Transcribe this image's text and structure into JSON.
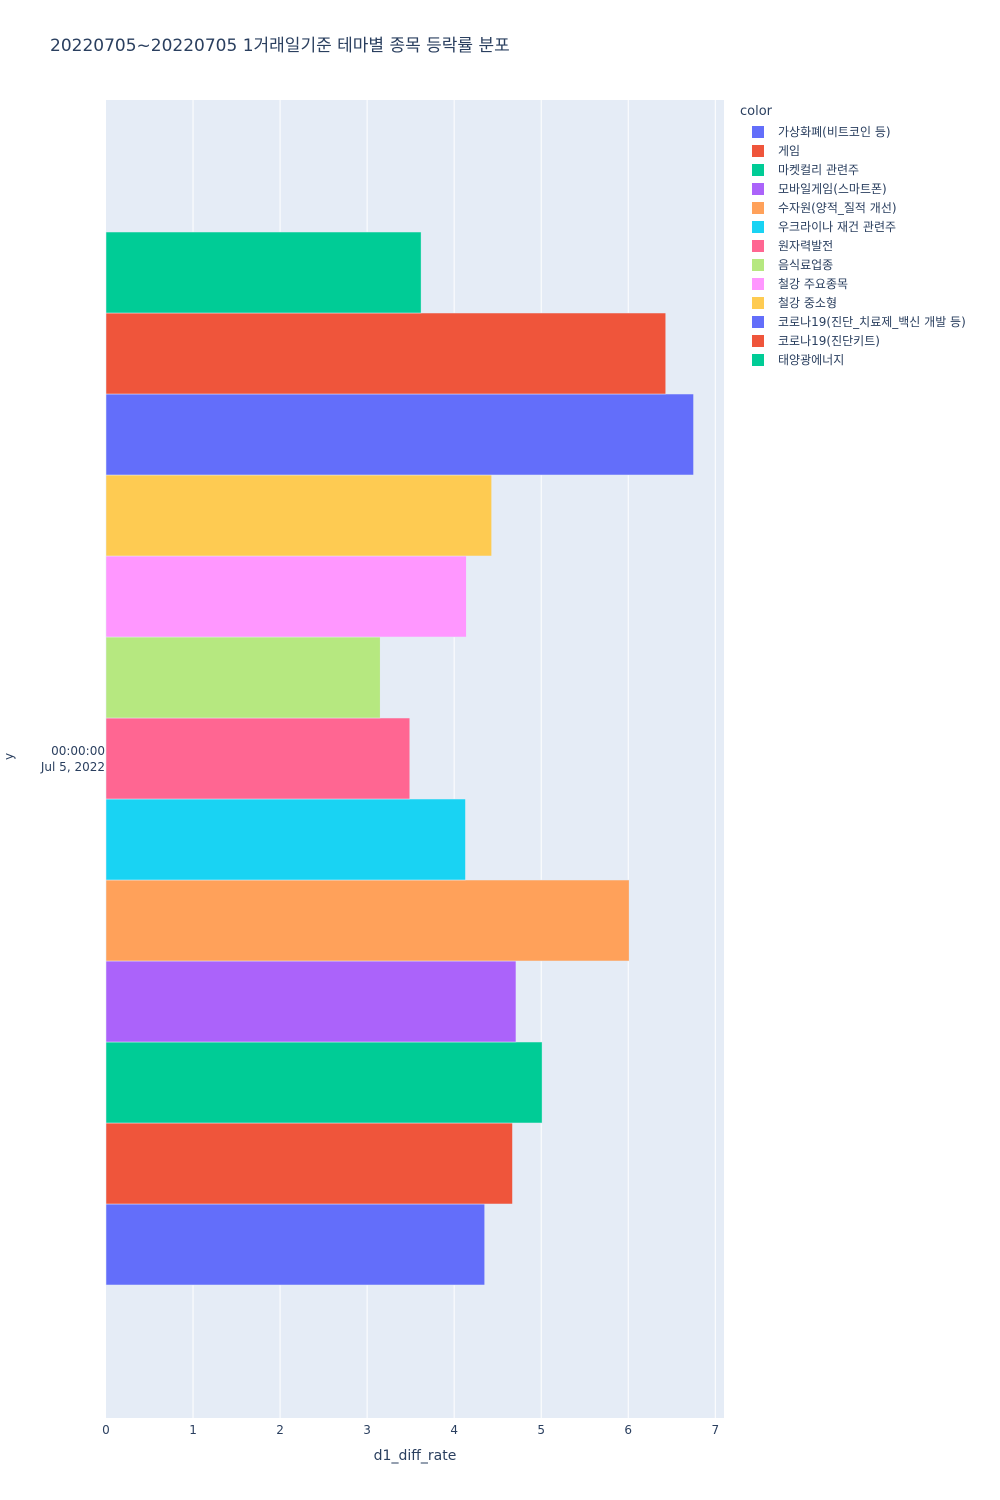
{
  "chart_data": {
    "type": "bar",
    "orientation": "horizontal",
    "title": "20220705~20220705 1거래일기준 테마별 종목 등락률 분포",
    "xlabel": "d1_diff_rate",
    "ylabel": "y",
    "y_tick_label": [
      "00:00:00",
      "Jul 5, 2022"
    ],
    "xlim": [
      0,
      7.1
    ],
    "x_ticks": [
      "0",
      "1",
      "2",
      "3",
      "4",
      "5",
      "6",
      "7"
    ],
    "grid": true,
    "legend_title": "color",
    "legend_position": "right",
    "series": [
      {
        "name": "가상화폐(비트코인 등)",
        "value": 4.35,
        "color": "#636efa"
      },
      {
        "name": "게임",
        "value": 4.67,
        "color": "#EF553B"
      },
      {
        "name": "마켓컬리 관련주",
        "value": 5.01,
        "color": "#00cc96"
      },
      {
        "name": "모바일게임(스마트폰)",
        "value": 4.71,
        "color": "#ab63fa"
      },
      {
        "name": "수자원(양적_질적 개선)",
        "value": 6.01,
        "color": "#FFA15A"
      },
      {
        "name": "우크라이나 재건 관련주",
        "value": 4.13,
        "color": "#19d3f3"
      },
      {
        "name": "원자력발전",
        "value": 3.49,
        "color": "#FF6692"
      },
      {
        "name": "음식료업종",
        "value": 3.15,
        "color": "#B6E880"
      },
      {
        "name": "철강 주요종목",
        "value": 4.14,
        "color": "#FF97FF"
      },
      {
        "name": "철강 중소형",
        "value": 4.43,
        "color": "#FECB52"
      },
      {
        "name": "코로나19(진단_치료제_백신 개발 등)",
        "value": 6.75,
        "color": "#636efa"
      },
      {
        "name": "코로나19(진단키트)",
        "value": 6.43,
        "color": "#EF553B"
      },
      {
        "name": "태양광에너지",
        "value": 3.62,
        "color": "#00cc96"
      }
    ]
  }
}
